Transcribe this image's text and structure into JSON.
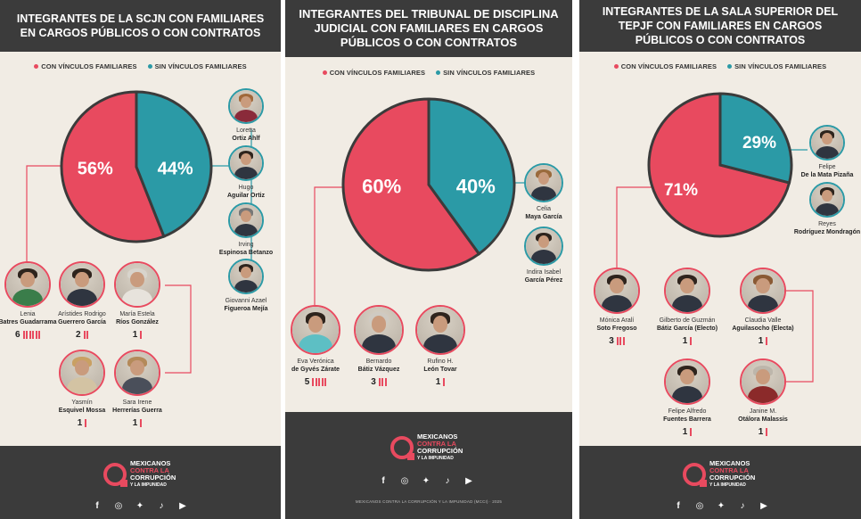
{
  "colors": {
    "with_family": "#e84a5f",
    "without_family": "#2b9aa6",
    "header_bg": "#3b3b3b",
    "panel_bg": "#f1ece4"
  },
  "legend": {
    "with_family": "CON VÍNCULOS FAMILIARES",
    "without_family": "SIN VÍNCULOS FAMILIARES"
  },
  "chart_data": [
    {
      "type": "pie",
      "title": "INTEGRANTES DE LA SCJN CON FAMILIARES EN CARGOS PÚBLICOS O CON CONTRATOS",
      "categories": [
        "CON VÍNCULOS FAMILIARES",
        "SIN VÍNCULOS FAMILIARES"
      ],
      "values": [
        56,
        44
      ],
      "labels": [
        "56%",
        "44%"
      ],
      "colors": [
        "#e84a5f",
        "#2b9aa6"
      ]
    },
    {
      "type": "pie",
      "title": "INTEGRANTES DEL TRIBUNAL DE DISCIPLINA JUDICIAL CON FAMILIARES EN CARGOS PÚBLICOS O CON CONTRATOS",
      "categories": [
        "CON VÍNCULOS FAMILIARES",
        "SIN VÍNCULOS FAMILIARES"
      ],
      "values": [
        60,
        40
      ],
      "labels": [
        "60%",
        "40%"
      ],
      "colors": [
        "#e84a5f",
        "#2b9aa6"
      ]
    },
    {
      "type": "pie",
      "title": "INTEGRANTES DE LA SALA SUPERIOR DEL TEPJF CON FAMILIARES EN CARGOS PÚBLICOS O CON CONTRATOS",
      "categories": [
        "CON VÍNCULOS FAMILIARES",
        "SIN VÍNCULOS FAMILIARES"
      ],
      "values": [
        71,
        29
      ],
      "labels": [
        "71%",
        "29%"
      ],
      "colors": [
        "#e84a5f",
        "#2b9aa6"
      ]
    }
  ],
  "panels": [
    {
      "title": "INTEGRANTES DE LA SCJN CON FAMILIARES EN CARGOS PÚBLICOS O CON CONTRATOS",
      "with_family": [
        {
          "first": "Lenia",
          "last": "Batres Guadarrama",
          "count": 6
        },
        {
          "first": "Arístides Rodrigo",
          "last": "Guerrero García",
          "count": 2
        },
        {
          "first": "María Estela",
          "last": "Ríos González",
          "count": 1
        },
        {
          "first": "Yasmín",
          "last": "Esquivel Mossa",
          "count": 1
        },
        {
          "first": "Sara Irene",
          "last": "Herrerías Guerra",
          "count": 1
        }
      ],
      "without_family": [
        {
          "first": "Loretta",
          "last": "Ortiz Ahlf"
        },
        {
          "first": "Hugo",
          "last": "Aguilar Ortiz"
        },
        {
          "first": "Irving",
          "last": "Espinosa Betanzo"
        },
        {
          "first": "Giovanni Azael",
          "last": "Figueroa Mejía"
        }
      ]
    },
    {
      "title": "INTEGRANTES DEL TRIBUNAL DE DISCIPLINA JUDICIAL CON FAMILIARES EN CARGOS PÚBLICOS O CON CONTRATOS",
      "with_family": [
        {
          "first": "Eva Verónica",
          "last": "de Gyvés Zárate",
          "count": 5
        },
        {
          "first": "Bernardo",
          "last": "Bátiz Vázquez",
          "count": 3
        },
        {
          "first": "Rufino H.",
          "last": "León Tovar",
          "count": 1
        }
      ],
      "without_family": [
        {
          "first": "Celia",
          "last": "Maya García"
        },
        {
          "first": "Indira Isabel",
          "last": "García Pérez"
        }
      ]
    },
    {
      "title": "INTEGRANTES DE LA SALA SUPERIOR DEL TEPJF CON FAMILIARES EN CARGOS PÚBLICOS O CON CONTRATOS",
      "with_family": [
        {
          "first": "Mónica Aralí",
          "last": "Soto Fregoso",
          "count": 3
        },
        {
          "first": "Gilberto de Guzmán",
          "last": "Bátiz García (Electo)",
          "count": 1
        },
        {
          "first": "Claudia Valle",
          "last": "Aguilasocho (Electa)",
          "count": 1
        },
        {
          "first": "Felipe Alfredo",
          "last": "Fuentes Barrera",
          "count": 1
        },
        {
          "first": "Janine M.",
          "last": "Otálora Malassis",
          "count": 1
        }
      ],
      "without_family": [
        {
          "first": "Felipe",
          "last": "De la Mata Pizaña"
        },
        {
          "first": "Reyes",
          "last": "Rodríguez Mondragón"
        }
      ]
    }
  ],
  "brand": {
    "line1": "MEXICANOS",
    "line2": "CONTRA LA",
    "line3": "CORRUPCIÓN",
    "line4": "Y LA IMPUNIDAD",
    "credits": "MEXICANOS CONTRA LA CORRUPCIÓN Y LA IMPUNIDAD (MCCI) · 2025"
  },
  "socials": [
    {
      "icon": "facebook-icon",
      "glyph": "f"
    },
    {
      "icon": "instagram-icon",
      "glyph": "◎"
    },
    {
      "icon": "twitter-icon",
      "glyph": "✦"
    },
    {
      "icon": "tiktok-icon",
      "glyph": "♪"
    },
    {
      "icon": "youtube-icon",
      "glyph": "▶"
    }
  ]
}
